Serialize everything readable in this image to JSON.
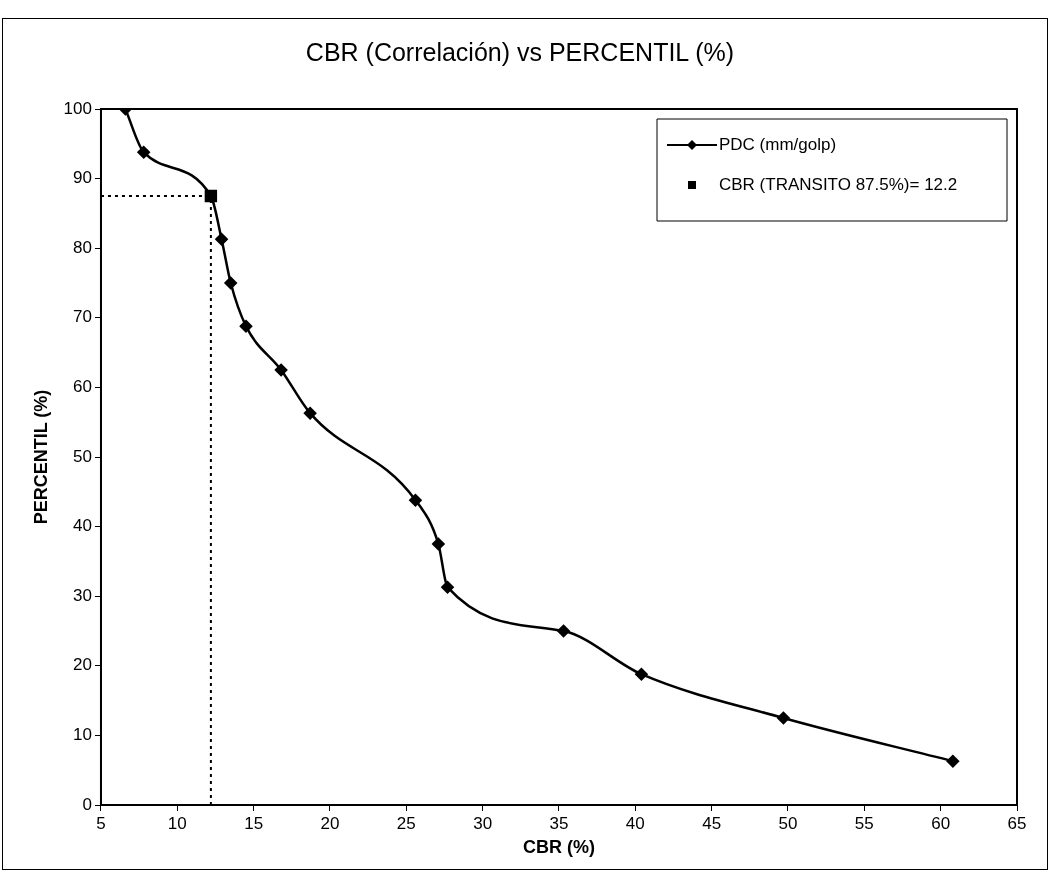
{
  "chart_data": {
    "type": "line",
    "title": "CBR (Correlación) vs PERCENTIL (%)",
    "xlabel": "CBR (%)",
    "ylabel": "PERCENTIL (%)",
    "series": [
      {
        "name": "PDC (mm/golp)",
        "type": "line",
        "color": "#000000",
        "marker": "diamond",
        "x": [
          6.6,
          7.8,
          12.2,
          12.9,
          13.5,
          14.5,
          16.8,
          18.7,
          25.6,
          27.1,
          27.7,
          35.3,
          40.4,
          49.7,
          60.8
        ],
        "values": [
          100,
          93.8,
          87.5,
          81.3,
          75,
          68.8,
          62.5,
          56.3,
          43.8,
          37.5,
          31.3,
          25,
          18.8,
          12.5,
          6.3
        ]
      },
      {
        "name": "CBR (TRANSITO 87.5%)= 12.2",
        "type": "scatter",
        "color": "#000000",
        "marker": "square",
        "x": [
          12.2
        ],
        "values": [
          87.5
        ]
      }
    ],
    "ref_lines": [
      {
        "axis": "y",
        "value": 87.5,
        "line_style": "dotted",
        "color": "#000000"
      },
      {
        "axis": "x",
        "value": 12.2,
        "line_style": "dotted",
        "color": "#000000"
      }
    ],
    "xlim": [
      5,
      65
    ],
    "xticks": [
      5,
      10,
      15,
      20,
      25,
      30,
      35,
      40,
      45,
      50,
      55,
      60,
      65
    ],
    "ylim": [
      0,
      100
    ],
    "yticks": [
      0,
      10,
      20,
      30,
      40,
      50,
      60,
      70,
      80,
      90,
      100
    ],
    "grid": false,
    "legend": "top right"
  }
}
